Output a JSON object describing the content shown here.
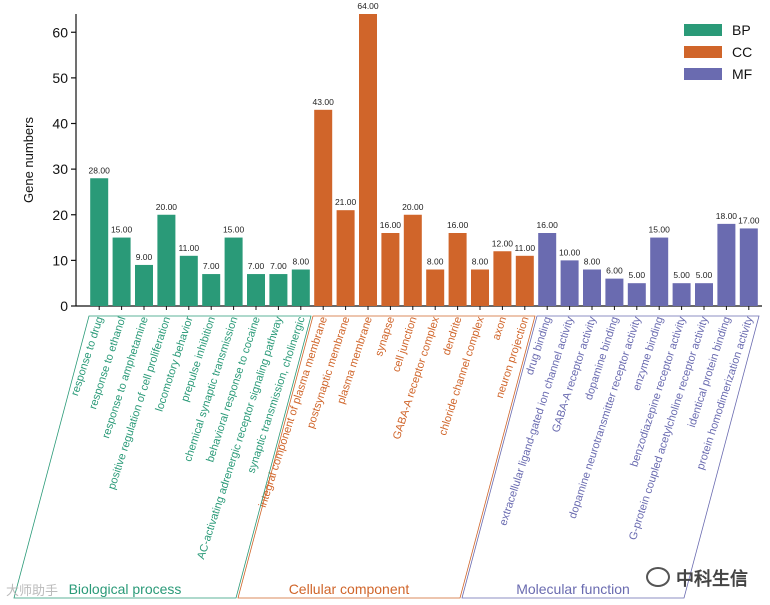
{
  "chart_data": {
    "type": "bar",
    "ylabel": "Gene numbers",
    "ylim": [
      0,
      64
    ],
    "yticks": [
      0,
      10,
      20,
      30,
      40,
      50,
      60
    ],
    "colors": {
      "BP": "#2a9a78",
      "CC": "#d0652a",
      "MF": "#6a6bb0"
    },
    "legend": {
      "position": "top-right",
      "entries": [
        "BP",
        "CC",
        "MF"
      ]
    },
    "groups": [
      {
        "key": "BP",
        "label": "Biological process",
        "categories": [
          "response to drug",
          "response to ethanol",
          "response to amphetamine",
          "positive regulation of cell proliferation",
          "locomotory behavior",
          "prepulse inhibition",
          "chemical synaptic transmission",
          "behavioral response to cocaine",
          "AC-activating adrenergic receptor signaling pathway",
          "synaptic transmission, cholinergic"
        ],
        "values": [
          28,
          15,
          9,
          20,
          11,
          7,
          15,
          7,
          7,
          8
        ]
      },
      {
        "key": "CC",
        "label": "Cellular component",
        "categories": [
          "integral component of plasma membrane",
          "postsynaptic membrane",
          "plasma membrane",
          "synapse",
          "cell junction",
          "GABA-A receptor complex",
          "dendrite",
          "chloride channel complex",
          "axon",
          "neuron projection"
        ],
        "values": [
          43,
          21,
          64,
          16,
          20,
          8,
          16,
          8,
          12,
          11
        ]
      },
      {
        "key": "MF",
        "label": "Molecular function",
        "categories": [
          "drug binding",
          "extracellular ligand-gated ion channel activity",
          "GABA-A receptor activity",
          "dopamine binding",
          "dopamine neurotransmitter receptor activity",
          "enzyme binding",
          "benzodiazepine receptor activity",
          "G-protein coupled acetylcholine receptor activity",
          "identical protein binding",
          "protein homodimerization activity"
        ],
        "values": [
          16,
          10,
          8,
          6,
          5,
          15,
          5,
          5,
          18,
          17
        ]
      }
    ]
  },
  "watermarks": {
    "right": "中科生信",
    "left": "大师助手"
  }
}
